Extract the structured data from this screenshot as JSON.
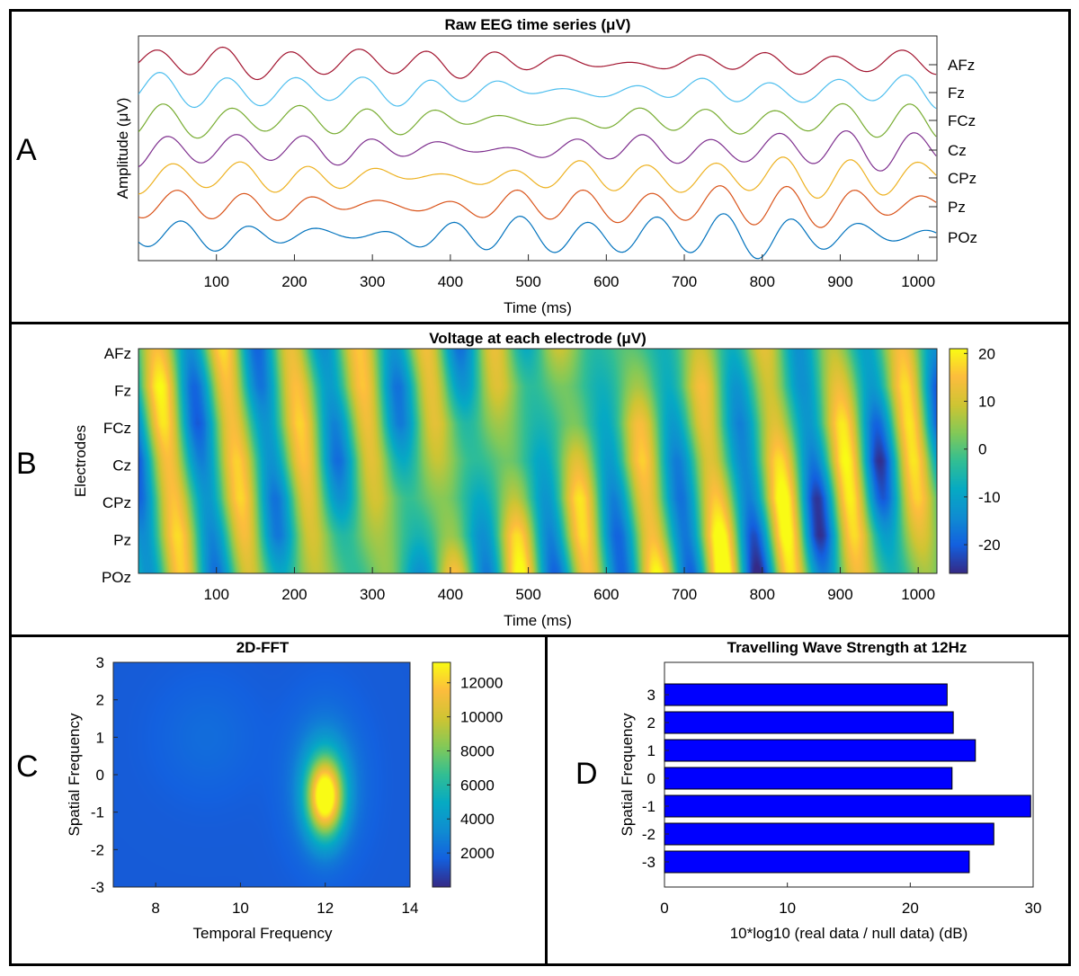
{
  "panels": {
    "a": {
      "letter": "A",
      "chart_data": {
        "type": "line",
        "title": "Raw EEG time series (μV)",
        "xlabel": "Time (ms)",
        "ylabel": "Amplitude (μV)",
        "xlim": [
          0,
          1024
        ],
        "xticks": [
          100,
          200,
          300,
          400,
          500,
          600,
          700,
          800,
          900,
          1000
        ],
        "series": [
          {
            "name": "AFz",
            "color": "#a2142f",
            "phase": 0.0,
            "amp": 0.8
          },
          {
            "name": "Fz",
            "color": "#4dbeee",
            "phase": 0.4,
            "amp": 0.85
          },
          {
            "name": "FCz",
            "color": "#77ac30",
            "phase": 0.8,
            "amp": 0.9
          },
          {
            "name": "Cz",
            "color": "#7e2f8e",
            "phase": 1.2,
            "amp": 0.95
          },
          {
            "name": "CPz",
            "color": "#edb120",
            "phase": 1.6,
            "amp": 1.0
          },
          {
            "name": "Pz",
            "color": "#d95319",
            "phase": 2.0,
            "amp": 1.05
          },
          {
            "name": "POz",
            "color": "#0072bd",
            "phase": 2.4,
            "amp": 1.1
          }
        ],
        "frequency_hz": 11.5
      }
    },
    "b": {
      "letter": "B",
      "chart_data": {
        "type": "heatmap",
        "title": "Voltage at each electrode (μV)",
        "xlabel": "Time (ms)",
        "ylabel": "Electrodes",
        "xlim": [
          0,
          1024
        ],
        "xticks": [
          100,
          200,
          300,
          400,
          500,
          600,
          700,
          800,
          900,
          1000
        ],
        "yticks": [
          "AFz",
          "Fz",
          "FCz",
          "Cz",
          "CPz",
          "Pz",
          "POz"
        ],
        "colorbar": {
          "ticks": [
            20,
            10,
            0,
            -10,
            -20
          ],
          "range": [
            -26,
            21
          ],
          "colormap": "parula"
        }
      }
    },
    "c": {
      "letter": "C",
      "chart_data": {
        "type": "heatmap",
        "title": "2D-FFT",
        "xlabel": "Temporal Frequency",
        "ylabel": "Spatial Frequency",
        "xlim": [
          7,
          14
        ],
        "ylim": [
          -3,
          3
        ],
        "xticks": [
          8,
          10,
          12,
          14
        ],
        "yticks": [
          3,
          2,
          1,
          0,
          -1,
          -2,
          -3
        ],
        "peak": {
          "temporal": 12,
          "spatial": -0.6,
          "value": 13000
        },
        "colorbar": {
          "ticks": [
            12000,
            10000,
            8000,
            6000,
            4000,
            2000
          ],
          "range": [
            0,
            13200
          ],
          "colormap": "parula"
        }
      }
    },
    "d": {
      "letter": "D",
      "chart_data": {
        "type": "bar",
        "orientation": "horizontal",
        "title": "Travelling Wave Strength at 12Hz",
        "xlabel": "10*log10 (real data / null data) (dB)",
        "ylabel": "Spatial Frequency",
        "categories": [
          "3",
          "2",
          "1",
          "0",
          "-1",
          "-2",
          "-3"
        ],
        "values": [
          23.0,
          23.5,
          25.3,
          23.4,
          29.8,
          26.8,
          24.8
        ],
        "xlim": [
          0,
          30
        ],
        "xticks": [
          0,
          10,
          20,
          30
        ],
        "color": "#0000ff"
      }
    }
  }
}
